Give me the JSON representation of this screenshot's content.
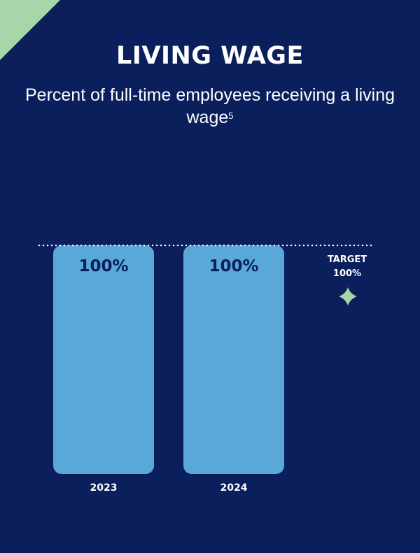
{
  "colors": {
    "background": "#0b1f5c",
    "bar": "#5aa8d8",
    "bar_label": "#0b1f5c",
    "accent": "#a7d7a9",
    "text": "#ffffff"
  },
  "chart_data": {
    "type": "bar",
    "title": "LIVING WAGE",
    "subtitle": "Percent of full-time employees receiving a living wage",
    "subtitle_footnote": "5",
    "categories": [
      "2023",
      "2024"
    ],
    "values": [
      100,
      100
    ],
    "value_labels": [
      "100%",
      "100%"
    ],
    "ylim": [
      0,
      100
    ],
    "target": {
      "label": "TARGET",
      "value": 100,
      "value_label": "100%",
      "icon": "sparkle-icon"
    },
    "grid": false
  }
}
